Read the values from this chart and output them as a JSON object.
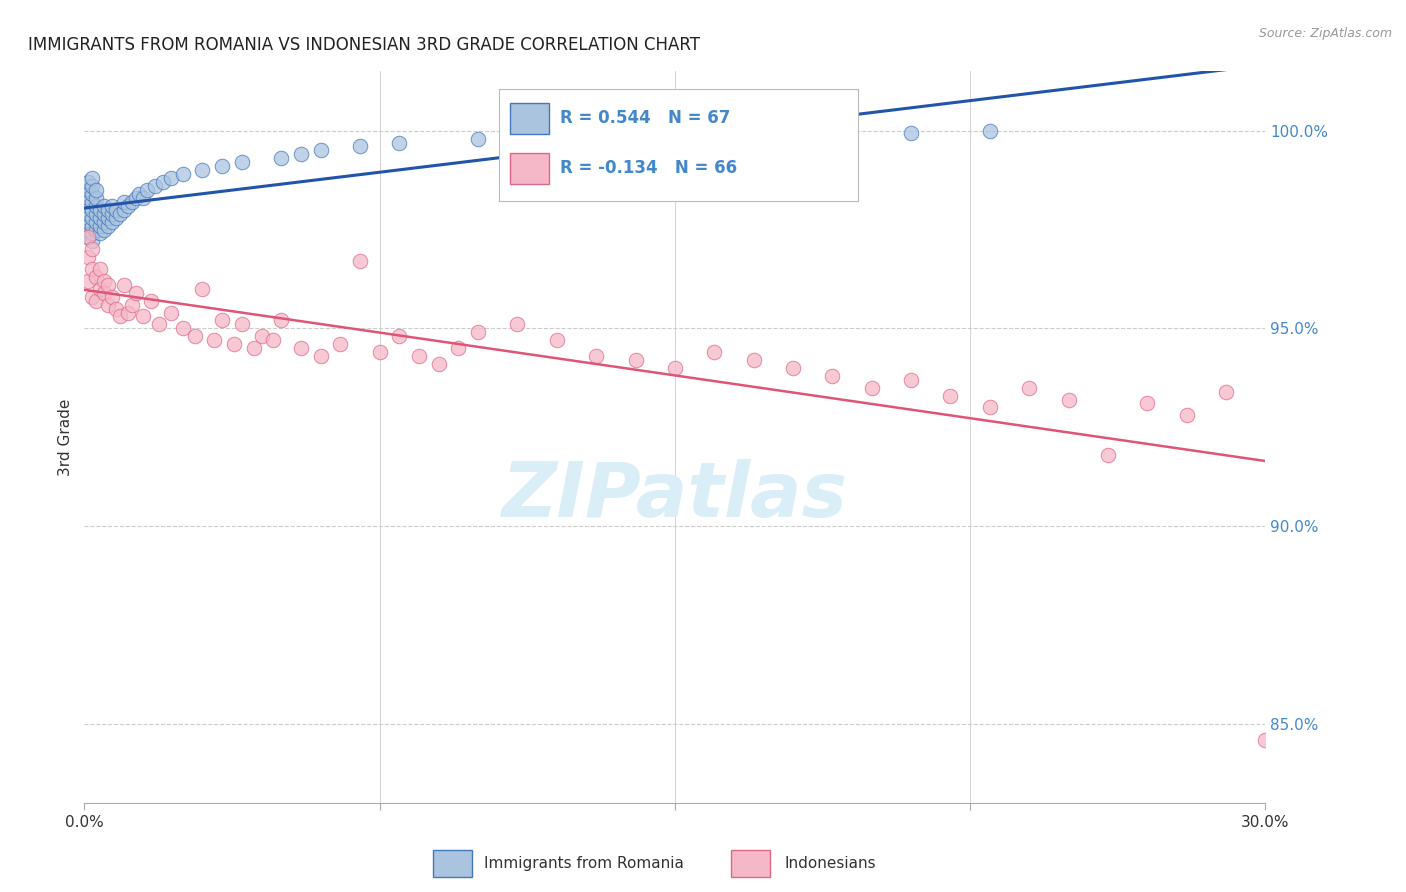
{
  "title": "IMMIGRANTS FROM ROMANIA VS INDONESIAN 3RD GRADE CORRELATION CHART",
  "source": "Source: ZipAtlas.com",
  "ylabel": "3rd Grade",
  "ymin": 83.0,
  "ymax": 101.5,
  "xmin": 0.0,
  "xmax": 0.3,
  "blue_R": 0.544,
  "blue_N": 67,
  "pink_R": -0.134,
  "pink_N": 66,
  "blue_color": "#aac4e0",
  "pink_color": "#f5b8c8",
  "blue_edge_color": "#4477bb",
  "pink_edge_color": "#e06688",
  "blue_line_color": "#2255aa",
  "pink_line_color": "#e05577",
  "legend_blue_label": "Immigrants from Romania",
  "legend_pink_label": "Indonesians",
  "background_color": "#ffffff",
  "grid_color": "#cccccc",
  "title_color": "#222222",
  "axis_label_color": "#333333",
  "right_axis_color": "#4488cc",
  "watermark_color": "#daeef8",
  "blue_scatter_x": [
    0.001,
    0.001,
    0.001,
    0.001,
    0.001,
    0.001,
    0.001,
    0.001,
    0.002,
    0.002,
    0.002,
    0.002,
    0.002,
    0.002,
    0.002,
    0.002,
    0.002,
    0.003,
    0.003,
    0.003,
    0.003,
    0.003,
    0.003,
    0.004,
    0.004,
    0.004,
    0.004,
    0.005,
    0.005,
    0.005,
    0.005,
    0.006,
    0.006,
    0.006,
    0.007,
    0.007,
    0.007,
    0.008,
    0.008,
    0.009,
    0.01,
    0.01,
    0.011,
    0.012,
    0.013,
    0.014,
    0.015,
    0.016,
    0.018,
    0.02,
    0.022,
    0.025,
    0.03,
    0.035,
    0.04,
    0.05,
    0.055,
    0.06,
    0.07,
    0.08,
    0.1,
    0.12,
    0.15,
    0.16,
    0.19,
    0.21,
    0.23
  ],
  "blue_scatter_y": [
    97.3,
    97.5,
    97.7,
    97.9,
    98.1,
    98.3,
    98.5,
    98.7,
    97.2,
    97.4,
    97.6,
    97.8,
    98.0,
    98.2,
    98.4,
    98.6,
    98.8,
    97.5,
    97.7,
    97.9,
    98.1,
    98.3,
    98.5,
    97.4,
    97.6,
    97.8,
    98.0,
    97.5,
    97.7,
    97.9,
    98.1,
    97.6,
    97.8,
    98.0,
    97.7,
    97.9,
    98.1,
    97.8,
    98.0,
    97.9,
    98.0,
    98.2,
    98.1,
    98.2,
    98.3,
    98.4,
    98.3,
    98.5,
    98.6,
    98.7,
    98.8,
    98.9,
    99.0,
    99.1,
    99.2,
    99.3,
    99.4,
    99.5,
    99.6,
    99.7,
    99.8,
    99.85,
    99.9,
    99.9,
    99.95,
    99.95,
    100.0
  ],
  "pink_scatter_x": [
    0.001,
    0.001,
    0.001,
    0.002,
    0.002,
    0.002,
    0.003,
    0.003,
    0.004,
    0.004,
    0.005,
    0.005,
    0.006,
    0.006,
    0.007,
    0.008,
    0.009,
    0.01,
    0.011,
    0.012,
    0.013,
    0.015,
    0.017,
    0.019,
    0.022,
    0.025,
    0.028,
    0.03,
    0.033,
    0.035,
    0.038,
    0.04,
    0.043,
    0.045,
    0.048,
    0.05,
    0.055,
    0.06,
    0.065,
    0.07,
    0.075,
    0.08,
    0.085,
    0.09,
    0.095,
    0.1,
    0.11,
    0.12,
    0.13,
    0.14,
    0.15,
    0.16,
    0.17,
    0.18,
    0.19,
    0.2,
    0.21,
    0.22,
    0.23,
    0.24,
    0.25,
    0.26,
    0.27,
    0.28,
    0.29,
    0.3
  ],
  "pink_scatter_y": [
    96.8,
    97.3,
    96.2,
    97.0,
    96.5,
    95.8,
    96.3,
    95.7,
    96.5,
    96.0,
    96.2,
    95.9,
    95.6,
    96.1,
    95.8,
    95.5,
    95.3,
    96.1,
    95.4,
    95.6,
    95.9,
    95.3,
    95.7,
    95.1,
    95.4,
    95.0,
    94.8,
    96.0,
    94.7,
    95.2,
    94.6,
    95.1,
    94.5,
    94.8,
    94.7,
    95.2,
    94.5,
    94.3,
    94.6,
    96.7,
    94.4,
    94.8,
    94.3,
    94.1,
    94.5,
    94.9,
    95.1,
    94.7,
    94.3,
    94.2,
    94.0,
    94.4,
    94.2,
    94.0,
    93.8,
    93.5,
    93.7,
    93.3,
    93.0,
    93.5,
    93.2,
    91.8,
    93.1,
    92.8,
    93.4,
    84.6
  ]
}
